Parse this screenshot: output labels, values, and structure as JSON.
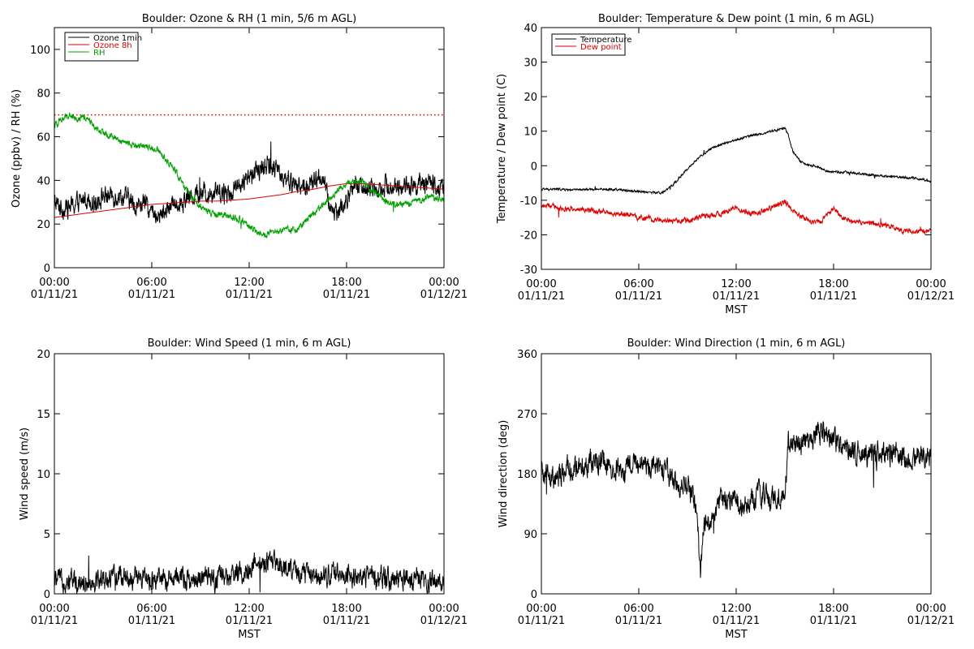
{
  "colors": {
    "black": "#000000",
    "red": "#dd0000",
    "green": "#00a000",
    "background": "#ffffff"
  },
  "chart_data": [
    {
      "type": "line",
      "title": "Boulder: Ozone & RH (1 min, 5/6 m AGL)",
      "xlabel": "",
      "ylabel": "Ozone (ppbv) / RH (%)",
      "xlim": [
        0,
        24
      ],
      "ylim": [
        0,
        110
      ],
      "yticks": [
        "0",
        "20",
        "40",
        "60",
        "80",
        "100"
      ],
      "xticks": [
        {
          "time": "00:00",
          "date": "01/11/21"
        },
        {
          "time": "06:00",
          "date": "01/11/21"
        },
        {
          "time": "12:00",
          "date": "01/11/21"
        },
        {
          "time": "18:00",
          "date": "01/11/21"
        },
        {
          "time": "00:00",
          "date": "01/12/21"
        }
      ],
      "legend": "top-left",
      "reference_line": {
        "y": 70,
        "style": "dotted",
        "color": "#dd0000"
      },
      "series": [
        {
          "name": "Ozone 1min",
          "color": "#000000",
          "noise": 3.5,
          "x": [
            0,
            0.5,
            1,
            1.5,
            2,
            2.5,
            3,
            3.5,
            4,
            4.5,
            5,
            5.5,
            6,
            6.5,
            7,
            7.5,
            8,
            8.5,
            9,
            9.5,
            10,
            10.5,
            11,
            11.5,
            12,
            12.5,
            13,
            13.5,
            14,
            14.5,
            15,
            15.5,
            16,
            16.5,
            17,
            17.5,
            18,
            18.5,
            19,
            19.5,
            20,
            20.5,
            21,
            21.5,
            22,
            22.5,
            23,
            23.5,
            24
          ],
          "values": [
            30,
            27,
            28,
            30,
            32,
            30,
            33,
            33,
            33,
            32,
            28,
            30,
            25,
            24,
            27,
            30,
            31,
            33,
            34,
            34,
            36,
            34,
            36,
            38,
            41,
            44,
            47,
            45,
            43,
            40,
            37,
            37,
            39,
            42,
            27,
            26,
            30,
            38,
            37,
            36,
            37,
            38,
            37,
            37,
            38,
            38,
            39,
            38,
            36
          ]
        },
        {
          "name": "Ozone 8h",
          "color": "#dd0000",
          "noise": 0,
          "x": [
            0,
            1,
            2,
            3,
            4,
            5,
            6,
            7,
            8,
            9,
            10,
            11,
            12,
            13,
            14,
            15,
            16,
            17,
            18,
            19,
            20,
            21,
            22,
            23,
            24
          ],
          "values": [
            23,
            24,
            25,
            26,
            27,
            28,
            29,
            29.5,
            30,
            30.5,
            30.5,
            31,
            31.5,
            32.5,
            33.5,
            35,
            36,
            37.5,
            38.5,
            38.5,
            38,
            37.5,
            37,
            36.5,
            36
          ]
        },
        {
          "name": "RH",
          "color": "#00a000",
          "noise": 1.2,
          "x": [
            0,
            0.5,
            1,
            1.5,
            2,
            2.5,
            3,
            3.5,
            4,
            4.5,
            5,
            5.5,
            6,
            6.5,
            7,
            7.5,
            8,
            8.5,
            9,
            9.5,
            10,
            10.5,
            11,
            11.5,
            12,
            12.5,
            13,
            13.5,
            14,
            14.5,
            15,
            15.5,
            16,
            16.5,
            17,
            17.5,
            18,
            18.5,
            19,
            19.5,
            20,
            20.5,
            21,
            21.5,
            22,
            22.5,
            23,
            23.5,
            24
          ],
          "values": [
            65,
            68,
            70,
            68,
            69,
            64,
            62,
            60,
            58,
            57,
            56,
            56,
            55,
            53,
            48,
            44,
            37,
            32,
            28,
            26,
            24,
            24,
            23,
            22,
            19,
            16,
            15,
            16,
            17,
            17,
            18,
            22,
            25,
            28,
            32,
            36,
            38,
            40,
            39,
            36,
            33,
            30,
            29,
            29,
            30,
            31,
            32,
            32,
            31
          ]
        }
      ]
    },
    {
      "type": "line",
      "title": "Boulder: Temperature & Dew point (1 min, 6 m AGL)",
      "xlabel": "MST",
      "ylabel": "Temperature / Dew point (C)",
      "xlim": [
        0,
        24
      ],
      "ylim": [
        -30,
        40
      ],
      "yticks": [
        "-30",
        "-20",
        "-10",
        "0",
        "10",
        "20",
        "30",
        "40"
      ],
      "xticks": [
        {
          "time": "00:00",
          "date": "01/11/21"
        },
        {
          "time": "06:00",
          "date": "01/11/21"
        },
        {
          "time": "12:00",
          "date": "01/11/21"
        },
        {
          "time": "18:00",
          "date": "01/11/21"
        },
        {
          "time": "00:00",
          "date": "01/12/21"
        }
      ],
      "legend": "top-left",
      "series": [
        {
          "name": "Temperature",
          "color": "#000000",
          "noise": 0.25,
          "x": [
            0,
            1,
            2,
            3,
            4,
            5,
            6,
            7,
            7.5,
            8,
            8.5,
            9,
            9.5,
            10,
            10.5,
            11,
            11.5,
            12,
            12.5,
            13,
            13.5,
            14,
            14.5,
            15,
            15.2,
            15.5,
            16,
            16.5,
            17,
            17.5,
            18,
            19,
            20,
            21,
            22,
            23,
            24
          ],
          "values": [
            -6.8,
            -6.8,
            -7,
            -6.9,
            -6.8,
            -7,
            -7.4,
            -7.8,
            -7.8,
            -6,
            -3.5,
            -1,
            1.5,
            3.5,
            5,
            6,
            6.8,
            7.5,
            8.2,
            8.8,
            9.2,
            9.8,
            10.3,
            11,
            9,
            4,
            1,
            0,
            -0.2,
            -1.5,
            -1.8,
            -2,
            -2.5,
            -3,
            -3.2,
            -3.6,
            -4.5
          ]
        },
        {
          "name": "Dew point",
          "color": "#dd0000",
          "noise": 0.6,
          "x": [
            0,
            1,
            2,
            3,
            4,
            5,
            6,
            7,
            8,
            9,
            10,
            11,
            11.5,
            12,
            12.5,
            13,
            14,
            14.5,
            15,
            15.5,
            16,
            16.5,
            17,
            17.5,
            18,
            18.5,
            19,
            20,
            21,
            22,
            23,
            24
          ],
          "values": [
            -11.5,
            -12,
            -12.5,
            -13,
            -13.5,
            -14,
            -15,
            -15.5,
            -16,
            -16,
            -14.5,
            -14,
            -13,
            -12,
            -13,
            -14,
            -12.5,
            -11.5,
            -10.5,
            -13,
            -14.5,
            -16,
            -16.5,
            -15,
            -12.5,
            -15,
            -16,
            -16.5,
            -17,
            -18.5,
            -19,
            -19
          ]
        }
      ]
    },
    {
      "type": "line",
      "title": "Boulder: Wind Speed (1 min, 6 m AGL)",
      "xlabel": "MST",
      "ylabel": "Wind speed (m/s)",
      "xlim": [
        0,
        24
      ],
      "ylim": [
        0,
        20
      ],
      "yticks": [
        "0",
        "5",
        "10",
        "15",
        "20"
      ],
      "xticks": [
        {
          "time": "00:00",
          "date": "01/11/21"
        },
        {
          "time": "06:00",
          "date": "01/11/21"
        },
        {
          "time": "12:00",
          "date": "01/11/21"
        },
        {
          "time": "18:00",
          "date": "01/11/21"
        },
        {
          "time": "00:00",
          "date": "01/12/21"
        }
      ],
      "legend": "none",
      "series": [
        {
          "color": "#000000",
          "noise": 0.7,
          "x": [
            0,
            1,
            2,
            3,
            4,
            5,
            6,
            7,
            8,
            9,
            10,
            11,
            11.5,
            12,
            12.5,
            13,
            13.5,
            14,
            14.5,
            15,
            16,
            17,
            18,
            19,
            20,
            21,
            22,
            23,
            24
          ],
          "values": [
            1.1,
            1.2,
            1,
            1.2,
            1.4,
            1.3,
            1.1,
            1.2,
            1.3,
            1.3,
            1.2,
            1.4,
            1.8,
            2.2,
            2.5,
            2.4,
            2.6,
            2.3,
            2.2,
            1.8,
            1.6,
            1.7,
            1.5,
            1.4,
            1.3,
            1.2,
            1.1,
            1.1,
            1
          ]
        }
      ]
    },
    {
      "type": "line",
      "title": "Boulder: Wind Direction (1 min, 6 m AGL)",
      "xlabel": "MST",
      "ylabel": "Wind direction (deg)",
      "xlim": [
        0,
        24
      ],
      "ylim": [
        0,
        360
      ],
      "yticks": [
        "0",
        "90",
        "180",
        "270",
        "360"
      ],
      "xticks": [
        {
          "time": "00:00",
          "date": "01/11/21"
        },
        {
          "time": "06:00",
          "date": "01/11/21"
        },
        {
          "time": "12:00",
          "date": "01/11/21"
        },
        {
          "time": "18:00",
          "date": "01/11/21"
        },
        {
          "time": "00:00",
          "date": "01/12/21"
        }
      ],
      "legend": "none",
      "series": [
        {
          "color": "#000000",
          "noise": 14,
          "x": [
            0,
            0.5,
            1,
            1.5,
            2,
            3,
            4,
            5,
            6,
            7,
            7.5,
            8,
            8.5,
            9,
            9.3,
            9.6,
            9.8,
            10,
            10.5,
            11,
            11.5,
            12,
            12.5,
            13,
            13.5,
            14,
            14.5,
            15,
            15.2,
            15.5,
            16,
            16.5,
            17,
            17.5,
            18,
            19,
            20,
            21,
            22,
            23,
            24
          ],
          "values": [
            180,
            175,
            170,
            190,
            185,
            200,
            195,
            185,
            195,
            190,
            185,
            175,
            165,
            160,
            150,
            110,
            30,
            100,
            120,
            135,
            145,
            140,
            130,
            140,
            150,
            145,
            140,
            145,
            225,
            225,
            225,
            222,
            245,
            245,
            230,
            215,
            210,
            205,
            210,
            200,
            210
          ]
        }
      ]
    }
  ]
}
